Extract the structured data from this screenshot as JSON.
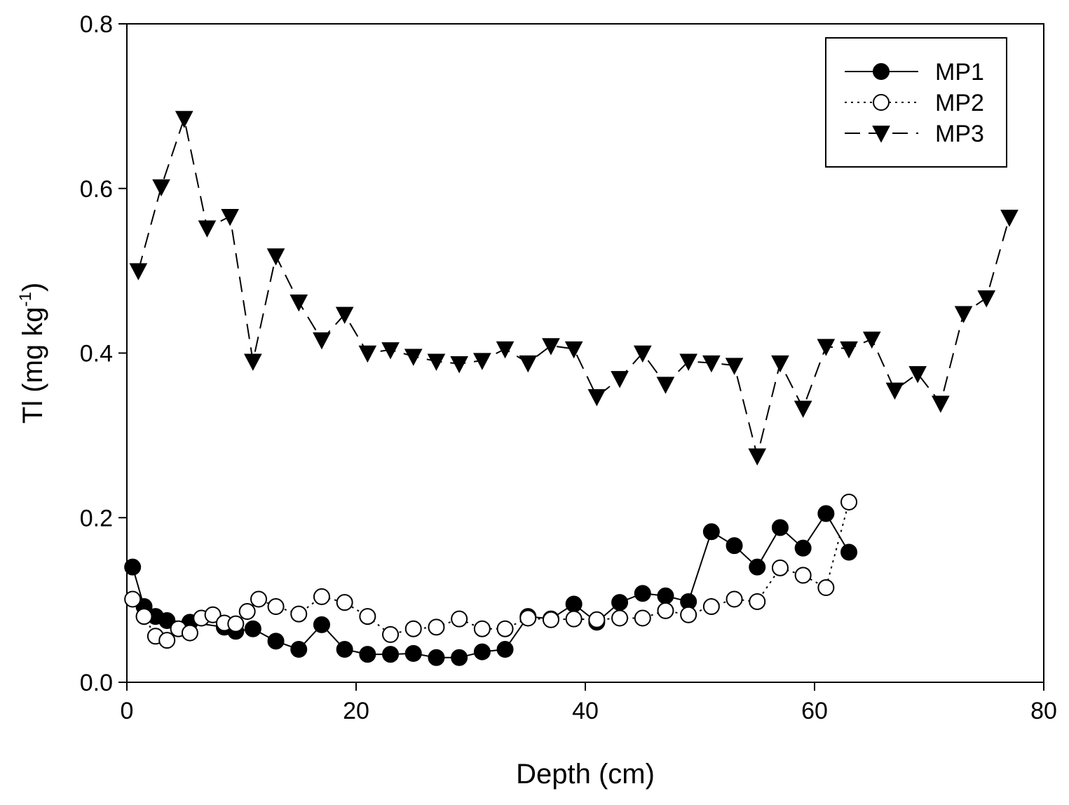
{
  "chart_data": {
    "type": "line",
    "title": "",
    "xlabel": "Depth (cm)",
    "ylabel": {
      "base": "Tl (mg kg",
      "superscript": "-1",
      "suffix": ")"
    },
    "xlim": [
      0,
      80
    ],
    "ylim": [
      0,
      0.8
    ],
    "xticks": [
      0,
      20,
      40,
      60,
      80
    ],
    "xtick_labels": [
      "0",
      "20",
      "40",
      "60",
      "80"
    ],
    "yticks": [
      0,
      0.2,
      0.4,
      0.6,
      0.8
    ],
    "ytick_labels": [
      "0.0",
      "0.2",
      "0.4",
      "0.6",
      "0.8"
    ],
    "grid": false,
    "legend_position": "top-right",
    "series": [
      {
        "name": "MP1",
        "line_style": "solid",
        "marker": "filled-circle",
        "x": [
          0.5,
          1.5,
          2.5,
          3.5,
          5.5,
          8.5,
          9.5,
          11,
          13,
          15,
          17,
          19,
          21,
          23,
          25,
          27,
          29,
          31,
          33,
          35,
          37,
          39,
          41,
          43,
          45,
          47,
          49,
          51,
          53,
          55,
          57,
          59,
          61,
          63
        ],
        "y": [
          0.14,
          0.092,
          0.08,
          0.075,
          0.073,
          0.067,
          0.062,
          0.065,
          0.05,
          0.04,
          0.07,
          0.04,
          0.034,
          0.034,
          0.035,
          0.03,
          0.03,
          0.037,
          0.04,
          0.08,
          0.077,
          0.095,
          0.073,
          0.097,
          0.108,
          0.105,
          0.098,
          0.183,
          0.166,
          0.14,
          0.188,
          0.163,
          0.205,
          0.158
        ]
      },
      {
        "name": "MP2",
        "line_style": "dotted",
        "marker": "open-circle",
        "x": [
          0.5,
          1.5,
          2.5,
          3.5,
          4.5,
          5.5,
          6.5,
          7.5,
          8.5,
          9.5,
          10.5,
          11.5,
          13,
          15,
          17,
          19,
          21,
          23,
          25,
          27,
          29,
          31,
          33,
          35,
          37,
          39,
          41,
          43,
          45,
          47,
          49,
          51,
          53,
          55,
          57,
          59,
          61,
          63
        ],
        "y": [
          0.101,
          0.08,
          0.056,
          0.051,
          0.065,
          0.06,
          0.078,
          0.082,
          0.072,
          0.071,
          0.086,
          0.101,
          0.092,
          0.083,
          0.104,
          0.097,
          0.08,
          0.058,
          0.065,
          0.067,
          0.077,
          0.065,
          0.065,
          0.078,
          0.076,
          0.077,
          0.076,
          0.078,
          0.078,
          0.087,
          0.082,
          0.092,
          0.101,
          0.098,
          0.139,
          0.13,
          0.115,
          0.219
        ]
      },
      {
        "name": "MP3",
        "line_style": "dashed",
        "marker": "filled-down-triangle",
        "x": [
          1,
          3,
          5,
          7,
          9,
          11,
          13,
          15,
          17,
          19,
          21,
          23,
          25,
          27,
          29,
          31,
          33,
          35,
          37,
          39,
          41,
          43,
          45,
          47,
          49,
          51,
          53,
          55,
          57,
          59,
          61,
          63,
          65,
          67,
          69,
          71,
          73,
          75,
          77
        ],
        "y": [
          0.5,
          0.602,
          0.685,
          0.552,
          0.566,
          0.39,
          0.518,
          0.462,
          0.416,
          0.447,
          0.4,
          0.404,
          0.396,
          0.39,
          0.387,
          0.391,
          0.405,
          0.388,
          0.409,
          0.405,
          0.347,
          0.369,
          0.4,
          0.362,
          0.39,
          0.388,
          0.385,
          0.275,
          0.388,
          0.333,
          0.408,
          0.405,
          0.417,
          0.355,
          0.375,
          0.339,
          0.448,
          0.467,
          0.565
        ]
      }
    ]
  }
}
